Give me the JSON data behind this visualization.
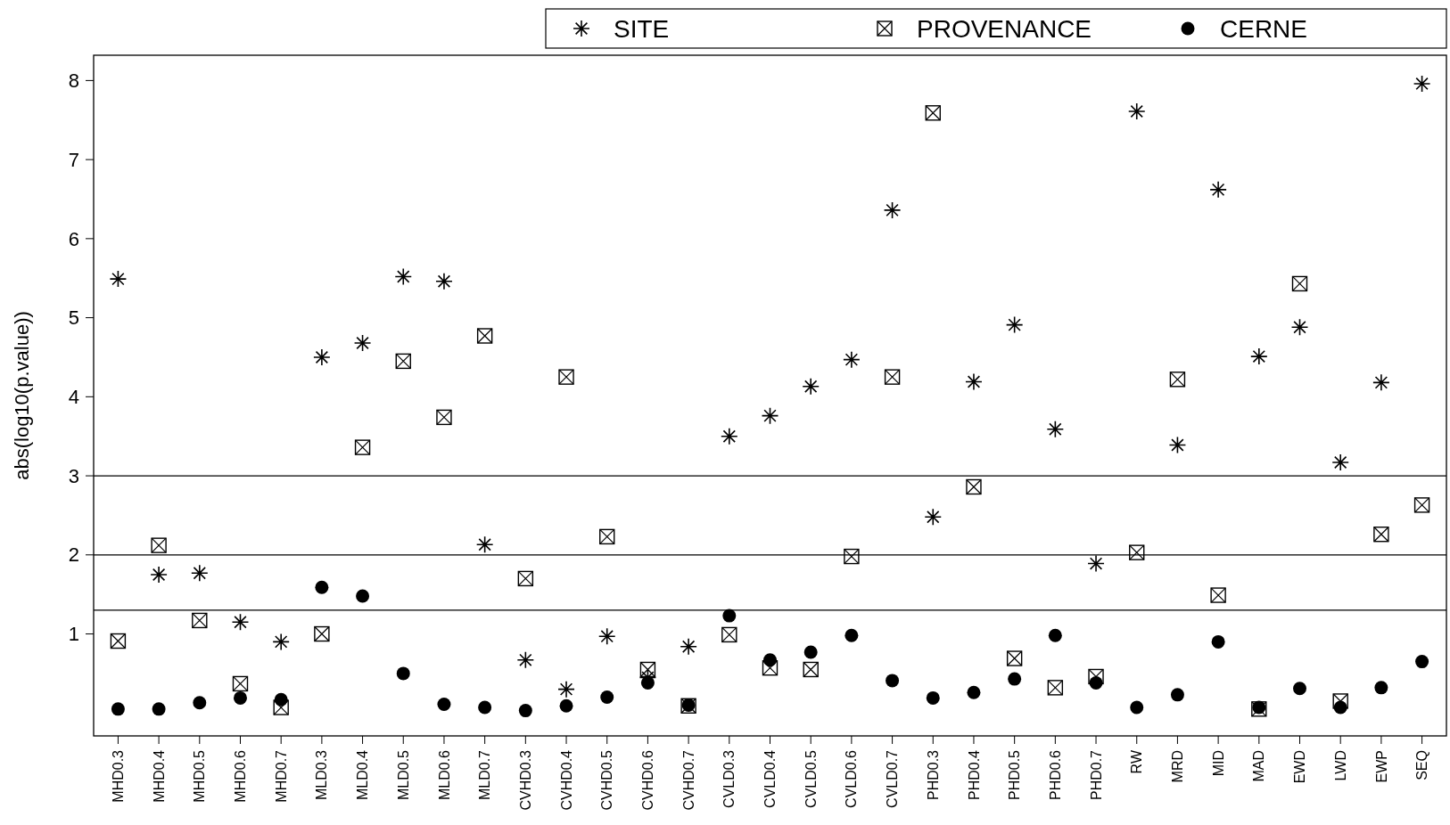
{
  "chart_data": {
    "type": "scatter",
    "ylabel": "abs(log10(p.value))",
    "categories": [
      "MHD0.3",
      "MHD0.4",
      "MHD0.5",
      "MHD0.6",
      "MHD0.7",
      "MLD0.3",
      "MLD0.4",
      "MLD0.5",
      "MLD0.6",
      "MLD0.7",
      "CVHD0.3",
      "CVHD0.4",
      "CVHD0.5",
      "CVHD0.6",
      "CVHD0.7",
      "CVLD0.3",
      "CVLD0.4",
      "CVLD0.5",
      "CVLD0.6",
      "CVLD0.7",
      "PHD0.3",
      "PHD0.4",
      "PHD0.5",
      "PHD0.6",
      "PHD0.7",
      "RW",
      "MRD",
      "MID",
      "MAD",
      "EWD",
      "LWD",
      "EWP",
      "SEQ"
    ],
    "series": [
      {
        "name": "SITE",
        "color": "#000000",
        "marker": "cross",
        "values": [
          5.49,
          1.75,
          1.77,
          1.15,
          0.9,
          4.5,
          4.68,
          5.52,
          5.46,
          2.13,
          0.67,
          0.3,
          0.97,
          0.45,
          0.84,
          3.5,
          3.76,
          4.13,
          4.47,
          6.36,
          2.48,
          4.19,
          4.91,
          3.59,
          1.89,
          7.61,
          3.39,
          6.62,
          4.51,
          4.88,
          3.17,
          4.18,
          7.96
        ]
      },
      {
        "name": "PROVENANCE",
        "color": "#000000",
        "marker": "square",
        "values": [
          0.91,
          2.12,
          1.17,
          0.37,
          0.07,
          1.0,
          3.36,
          4.45,
          3.74,
          4.77,
          1.7,
          4.25,
          2.23,
          0.55,
          0.09,
          0.99,
          0.57,
          0.55,
          1.98,
          4.25,
          7.59,
          2.86,
          0.69,
          0.32,
          0.46,
          2.03,
          4.22,
          1.49,
          0.05,
          5.43,
          0.15,
          2.26,
          2.63
        ]
      },
      {
        "name": "CERNE",
        "color": "#000000",
        "marker": "circle",
        "values": [
          0.05,
          0.05,
          0.13,
          0.19,
          0.17,
          1.59,
          1.48,
          0.5,
          0.11,
          0.07,
          0.03,
          0.09,
          0.2,
          0.38,
          0.1,
          1.23,
          0.67,
          0.77,
          0.98,
          0.41,
          0.19,
          0.26,
          0.43,
          0.98,
          0.38,
          0.07,
          0.23,
          0.9,
          0.07,
          0.31,
          0.07,
          0.32,
          0.65
        ]
      }
    ],
    "ylim": [
      -0.29,
      8.32
    ],
    "yticks": [
      1,
      2,
      3,
      4,
      5,
      6,
      7,
      8
    ],
    "ref_lines": [
      {
        "axis": "y",
        "value": 3
      },
      {
        "axis": "y",
        "value": 2
      },
      {
        "axis": "y",
        "value": 1.3
      }
    ],
    "legend": "top right",
    "grid": false
  }
}
